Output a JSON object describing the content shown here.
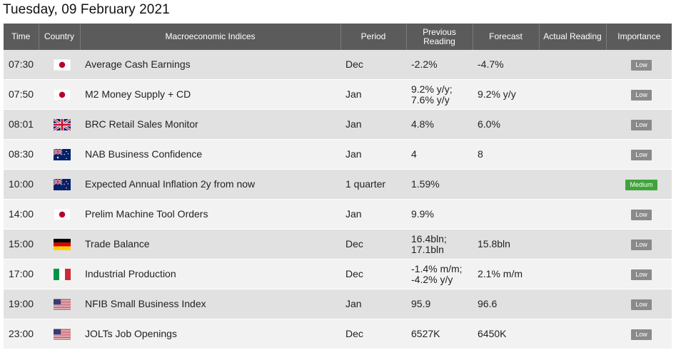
{
  "page": {
    "title": "Tuesday, 09 February 2021"
  },
  "table": {
    "headers": {
      "time": "Time",
      "country": "Country",
      "indices": "Macroeconomic Indices",
      "period": "Period",
      "previous": "Previous Reading",
      "forecast": "Forecast",
      "actual": "Actual Reading",
      "importance": "Importance"
    },
    "rows": [
      {
        "time": "07:30",
        "flag": "japan-flag-icon",
        "name": "Average Cash Earnings",
        "period": "Dec",
        "previous": "-2.2%",
        "forecast": "-4.7%",
        "actual": "",
        "importance": "Low"
      },
      {
        "time": "07:50",
        "flag": "japan-flag-icon",
        "name": "M2 Money Supply + CD",
        "period": "Jan",
        "previous": "9.2% y/y; 7.6% y/y",
        "forecast": "9.2% y/y",
        "actual": "",
        "importance": "Low"
      },
      {
        "time": "08:01",
        "flag": "uk-flag-icon",
        "name": "BRC Retail Sales Monitor",
        "period": "Jan",
        "previous": "4.8%",
        "forecast": "6.0%",
        "actual": "",
        "importance": "Low"
      },
      {
        "time": "08:30",
        "flag": "australia-flag-icon",
        "name": "NAB Business Confidence",
        "period": "Jan",
        "previous": "4",
        "forecast": "8",
        "actual": "",
        "importance": "Low"
      },
      {
        "time": "10:00",
        "flag": "new-zealand-flag-icon",
        "name": "Expected Annual Inflation 2y from now",
        "period": "1 quarter",
        "previous": "1.59%",
        "forecast": "",
        "actual": "",
        "importance": "Medium"
      },
      {
        "time": "14:00",
        "flag": "japan-flag-icon",
        "name": "Prelim Machine Tool Orders",
        "period": "Jan",
        "previous": "9.9%",
        "forecast": "",
        "actual": "",
        "importance": "Low"
      },
      {
        "time": "15:00",
        "flag": "germany-flag-icon",
        "name": "Trade Balance",
        "period": "Dec",
        "previous": "16.4bln; 17.1bln",
        "forecast": "15.8bln",
        "actual": "",
        "importance": "Low"
      },
      {
        "time": "17:00",
        "flag": "italy-flag-icon",
        "name": "Industrial Production",
        "period": "Dec",
        "previous": "-1.4% m/m; -4.2% y/y",
        "forecast": "2.1% m/m",
        "actual": "",
        "importance": "Low"
      },
      {
        "time": "19:00",
        "flag": "usa-flag-icon",
        "name": "NFIB Small Business Index",
        "period": "Jan",
        "previous": "95.9",
        "forecast": "96.6",
        "actual": "",
        "importance": "Low"
      },
      {
        "time": "23:00",
        "flag": "usa-flag-icon",
        "name": "JOLTs Job Openings",
        "period": "Dec",
        "previous": "6527K",
        "forecast": "6450K",
        "actual": "",
        "importance": "Low"
      }
    ]
  },
  "colors": {
    "header_bg": "#5b5b5b",
    "row_odd": "#e1e1e1",
    "row_even": "#f2f2f2",
    "badge_low": "#8a8a8a",
    "badge_medium": "#3fa53b"
  }
}
